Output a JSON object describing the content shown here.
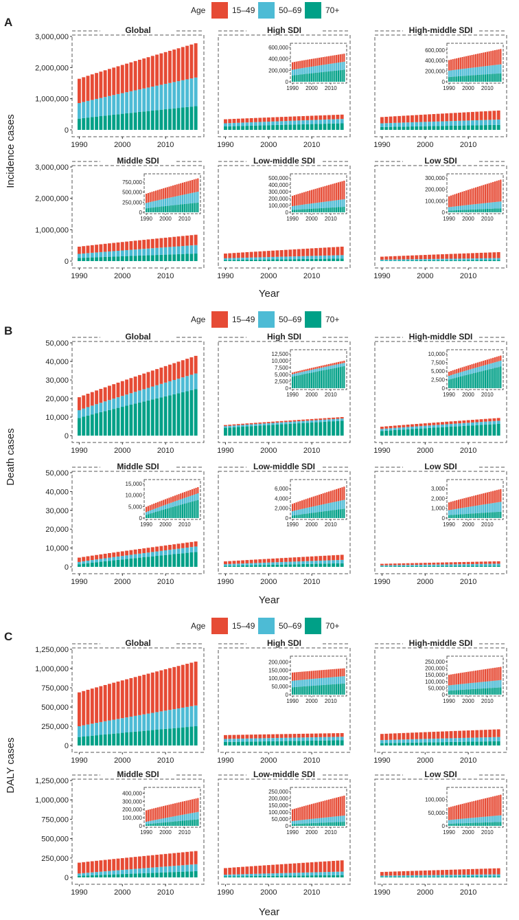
{
  "figure": {
    "legend": {
      "title": "Age",
      "labels": [
        "15–49",
        "50–69",
        "70+"
      ]
    },
    "colors": {
      "15-49": "#E64B35",
      "50-69": "#4DBBD5",
      "70+": "#00A087"
    }
  },
  "chart_data": [
    {
      "panel": "A",
      "type": "bar",
      "stacked": true,
      "ylabel": "Incidence cases",
      "xlabel": "Year",
      "x": [
        1990,
        1991,
        1992,
        1993,
        1994,
        1995,
        1996,
        1997,
        1998,
        1999,
        2000,
        2001,
        2002,
        2003,
        2004,
        2005,
        2006,
        2007,
        2008,
        2009,
        2010,
        2011,
        2012,
        2013,
        2014,
        2015,
        2016,
        2017
      ],
      "xticks": [
        1990,
        2000,
        2010
      ],
      "ylim": [
        0,
        3000000
      ],
      "yticks": [
        0,
        1000000,
        2000000,
        3000000
      ],
      "ytick_labels": [
        "0",
        "1,000,000",
        "2,000,000",
        "3,000,000"
      ],
      "legend_order": [
        "15-49",
        "50-69",
        "70+"
      ],
      "facets": [
        {
          "title": "Global",
          "series": {
            "15-49": {
              "start": 780000,
              "end": 1100000
            },
            "50-69": {
              "start": 500000,
              "end": 920000
            },
            "70+": {
              "start": 360000,
              "end": 760000
            }
          }
        },
        {
          "title": "High SDI",
          "series": {
            "15-49": {
              "start": 130000,
              "end": 140000
            },
            "50-69": {
              "start": 100000,
              "end": 140000
            },
            "70+": {
              "start": 110000,
              "end": 210000
            }
          },
          "inset": {
            "ylim": [
              0,
              600000
            ],
            "yticks": [
              0,
              200000,
              400000,
              600000
            ],
            "ytick_labels": [
              "0",
              "200,000",
              "400,000",
              "600,000"
            ]
          }
        },
        {
          "title": "High-middle SDI",
          "series": {
            "15-49": {
              "start": 200000,
              "end": 290000
            },
            "50-69": {
              "start": 120000,
              "end": 170000
            },
            "70+": {
              "start": 90000,
              "end": 160000
            }
          },
          "inset": {
            "ylim": [
              0,
              650000
            ],
            "yticks": [
              0,
              200000,
              400000,
              600000
            ],
            "ytick_labels": [
              "0",
              "200,000",
              "400,000",
              "600,000"
            ]
          }
        },
        {
          "title": "Middle SDI",
          "series": {
            "15-49": {
              "start": 230000,
              "end": 330000
            },
            "50-69": {
              "start": 130000,
              "end": 270000
            },
            "70+": {
              "start": 100000,
              "end": 240000
            }
          },
          "inset": {
            "ylim": [
              0,
              850000
            ],
            "yticks": [
              0,
              250000,
              500000,
              750000
            ],
            "ytick_labels": [
              "0",
              "250,000",
              "500,000",
              "750,000"
            ]
          }
        },
        {
          "title": "Low-middle SDI",
          "series": {
            "15-49": {
              "start": 150000,
              "end": 270000
            },
            "50-69": {
              "start": 55000,
              "end": 110000
            },
            "70+": {
              "start": 35000,
              "end": 80000
            }
          },
          "inset": {
            "ylim": [
              0,
              500000
            ],
            "yticks": [
              0,
              100000,
              200000,
              300000,
              400000,
              500000
            ],
            "ytick_labels": [
              "0",
              "100,000",
              "200,000",
              "300,000",
              "400,000",
              "500,000"
            ]
          }
        },
        {
          "title": "Low SDI",
          "series": {
            "15-49": {
              "start": 95000,
              "end": 190000
            },
            "50-69": {
              "start": 30000,
              "end": 60000
            },
            "70+": {
              "start": 15000,
              "end": 35000
            }
          },
          "inset": {
            "ylim": [
              0,
              300000
            ],
            "yticks": [
              0,
              100000,
              200000,
              300000
            ],
            "ytick_labels": [
              "0",
              "100,000",
              "200,000",
              "300,000"
            ]
          }
        }
      ]
    },
    {
      "panel": "B",
      "type": "bar",
      "stacked": true,
      "ylabel": "Death cases",
      "xlabel": "Year",
      "x": [
        1990,
        1991,
        1992,
        1993,
        1994,
        1995,
        1996,
        1997,
        1998,
        1999,
        2000,
        2001,
        2002,
        2003,
        2004,
        2005,
        2006,
        2007,
        2008,
        2009,
        2010,
        2011,
        2012,
        2013,
        2014,
        2015,
        2016,
        2017
      ],
      "xticks": [
        1990,
        2000,
        2010
      ],
      "ylim": [
        0,
        50000
      ],
      "yticks": [
        0,
        10000,
        20000,
        30000,
        40000,
        50000
      ],
      "ytick_labels": [
        "0",
        "10,000",
        "20,000",
        "30,000",
        "40,000",
        "50,000"
      ],
      "legend_order": [
        "15-49",
        "50-69",
        "70+"
      ],
      "facets": [
        {
          "title": "Global",
          "series": {
            "15-49": {
              "start": 7000,
              "end": 9500
            },
            "50-69": {
              "start": 4200,
              "end": 8500
            },
            "70+": {
              "start": 9500,
              "end": 25000
            }
          }
        },
        {
          "title": "High SDI",
          "series": {
            "15-49": {
              "start": 600,
              "end": 800
            },
            "50-69": {
              "start": 900,
              "end": 1200
            },
            "70+": {
              "start": 4200,
              "end": 8000
            }
          },
          "inset": {
            "ylim": [
              0,
              12500
            ],
            "yticks": [
              0,
              2500,
              5000,
              7500,
              10000,
              12500
            ],
            "ytick_labels": [
              "0",
              "2,500",
              "5,000",
              "7,500",
              "10,000",
              "12,500"
            ]
          }
        },
        {
          "title": "High-middle SDI",
          "series": {
            "15-49": {
              "start": 1200,
              "end": 1500
            },
            "50-69": {
              "start": 1100,
              "end": 1700
            },
            "70+": {
              "start": 2500,
              "end": 6300
            }
          },
          "inset": {
            "ylim": [
              0,
              10000
            ],
            "yticks": [
              0,
              2500,
              5000,
              7500,
              10000
            ],
            "ytick_labels": [
              "0",
              "2,500",
              "5,000",
              "7,500",
              "10,000"
            ]
          }
        },
        {
          "title": "Middle SDI",
          "series": {
            "15-49": {
              "start": 2300,
              "end": 2700
            },
            "50-69": {
              "start": 1200,
              "end": 2900
            },
            "70+": {
              "start": 1400,
              "end": 7900
            }
          },
          "inset": {
            "ylim": [
              0,
              15000
            ],
            "yticks": [
              0,
              5000,
              10000,
              15000
            ],
            "ytick_labels": [
              "0",
              "5,000",
              "10,000",
              "15,000"
            ]
          }
        },
        {
          "title": "Low-middle SDI",
          "series": {
            "15-49": {
              "start": 1500,
              "end": 2700
            },
            "50-69": {
              "start": 900,
              "end": 1800
            },
            "70+": {
              "start": 500,
              "end": 1900
            }
          },
          "inset": {
            "ylim": [
              0,
              7000
            ],
            "yticks": [
              0,
              2000,
              4000,
              6000
            ],
            "ytick_labels": [
              "0",
              "2,000",
              "4,000",
              "6,000"
            ]
          }
        },
        {
          "title": "Low SDI",
          "series": {
            "15-49": {
              "start": 800,
              "end": 1300
            },
            "50-69": {
              "start": 500,
              "end": 1000
            },
            "70+": {
              "start": 300,
              "end": 650
            }
          },
          "inset": {
            "ylim": [
              0,
              3500
            ],
            "yticks": [
              0,
              1000,
              2000,
              3000
            ],
            "ytick_labels": [
              "0",
              "1,000",
              "2,000",
              "3,000"
            ]
          }
        }
      ]
    },
    {
      "panel": "C",
      "type": "bar",
      "stacked": true,
      "ylabel": "DALY cases",
      "xlabel": "Year",
      "x": [
        1990,
        1991,
        1992,
        1993,
        1994,
        1995,
        1996,
        1997,
        1998,
        1999,
        2000,
        2001,
        2002,
        2003,
        2004,
        2005,
        2006,
        2007,
        2008,
        2009,
        2010,
        2011,
        2012,
        2013,
        2014,
        2015,
        2016,
        2017
      ],
      "xticks": [
        1990,
        2000,
        2010
      ],
      "ylim": [
        0,
        1250000
      ],
      "yticks": [
        0,
        250000,
        500000,
        750000,
        1000000,
        1250000
      ],
      "ytick_labels": [
        "0",
        "250,000",
        "500,000",
        "750,000",
        "1,000,000",
        "1,250,000"
      ],
      "legend_order": [
        "15-49",
        "50-69",
        "70+"
      ],
      "facets": [
        {
          "title": "Global",
          "series": {
            "15-49": {
              "start": 440000,
              "end": 570000
            },
            "50-69": {
              "start": 140000,
              "end": 270000
            },
            "70+": {
              "start": 110000,
              "end": 250000
            }
          }
        },
        {
          "title": "High SDI",
          "series": {
            "15-49": {
              "start": 50000,
              "end": 48000
            },
            "50-69": {
              "start": 40000,
              "end": 45000
            },
            "70+": {
              "start": 45000,
              "end": 68000
            }
          },
          "inset": {
            "ylim": [
              0,
              210000
            ],
            "yticks": [
              0,
              50000,
              100000,
              150000,
              200000
            ],
            "ytick_labels": [
              "0",
              "50,000",
              "100,000",
              "150,000",
              "200,000"
            ]
          }
        },
        {
          "title": "High-middle SDI",
          "series": {
            "15-49": {
              "start": 80000,
              "end": 100000
            },
            "50-69": {
              "start": 40000,
              "end": 55000
            },
            "70+": {
              "start": 30000,
              "end": 55000
            }
          },
          "inset": {
            "ylim": [
              0,
              260000
            ],
            "yticks": [
              0,
              50000,
              100000,
              150000,
              200000,
              250000
            ],
            "ytick_labels": [
              "0",
              "50,000",
              "100,000",
              "150,000",
              "200,000",
              "250,000"
            ]
          }
        },
        {
          "title": "Middle SDI",
          "series": {
            "15-49": {
              "start": 140000,
              "end": 170000
            },
            "50-69": {
              "start": 30000,
              "end": 90000
            },
            "70+": {
              "start": 20000,
              "end": 80000
            }
          },
          "inset": {
            "ylim": [
              0,
              420000
            ],
            "yticks": [
              0,
              100000,
              200000,
              300000,
              400000
            ],
            "ytick_labels": [
              "0",
              "100,000",
              "200,000",
              "300,000",
              "400,000"
            ]
          }
        },
        {
          "title": "Low-middle SDI",
          "series": {
            "15-49": {
              "start": 85000,
              "end": 145000
            },
            "50-69": {
              "start": 22000,
              "end": 45000
            },
            "70+": {
              "start": 13000,
              "end": 30000
            }
          },
          "inset": {
            "ylim": [
              0,
              250000
            ],
            "yticks": [
              0,
              50000,
              100000,
              150000,
              200000,
              250000
            ],
            "ytick_labels": [
              "0",
              "50,000",
              "100,000",
              "150,000",
              "200,000",
              "250,000"
            ]
          }
        },
        {
          "title": "Low SDI",
          "series": {
            "15-49": {
              "start": 48000,
              "end": 78000
            },
            "50-69": {
              "start": 14000,
              "end": 25000
            },
            "70+": {
              "start": 8000,
              "end": 15000
            }
          },
          "inset": {
            "ylim": [
              0,
              130000
            ],
            "yticks": [
              0,
              50000,
              100000
            ],
            "ytick_labels": [
              "0",
              "50,000",
              "100,000"
            ]
          }
        }
      ]
    }
  ]
}
